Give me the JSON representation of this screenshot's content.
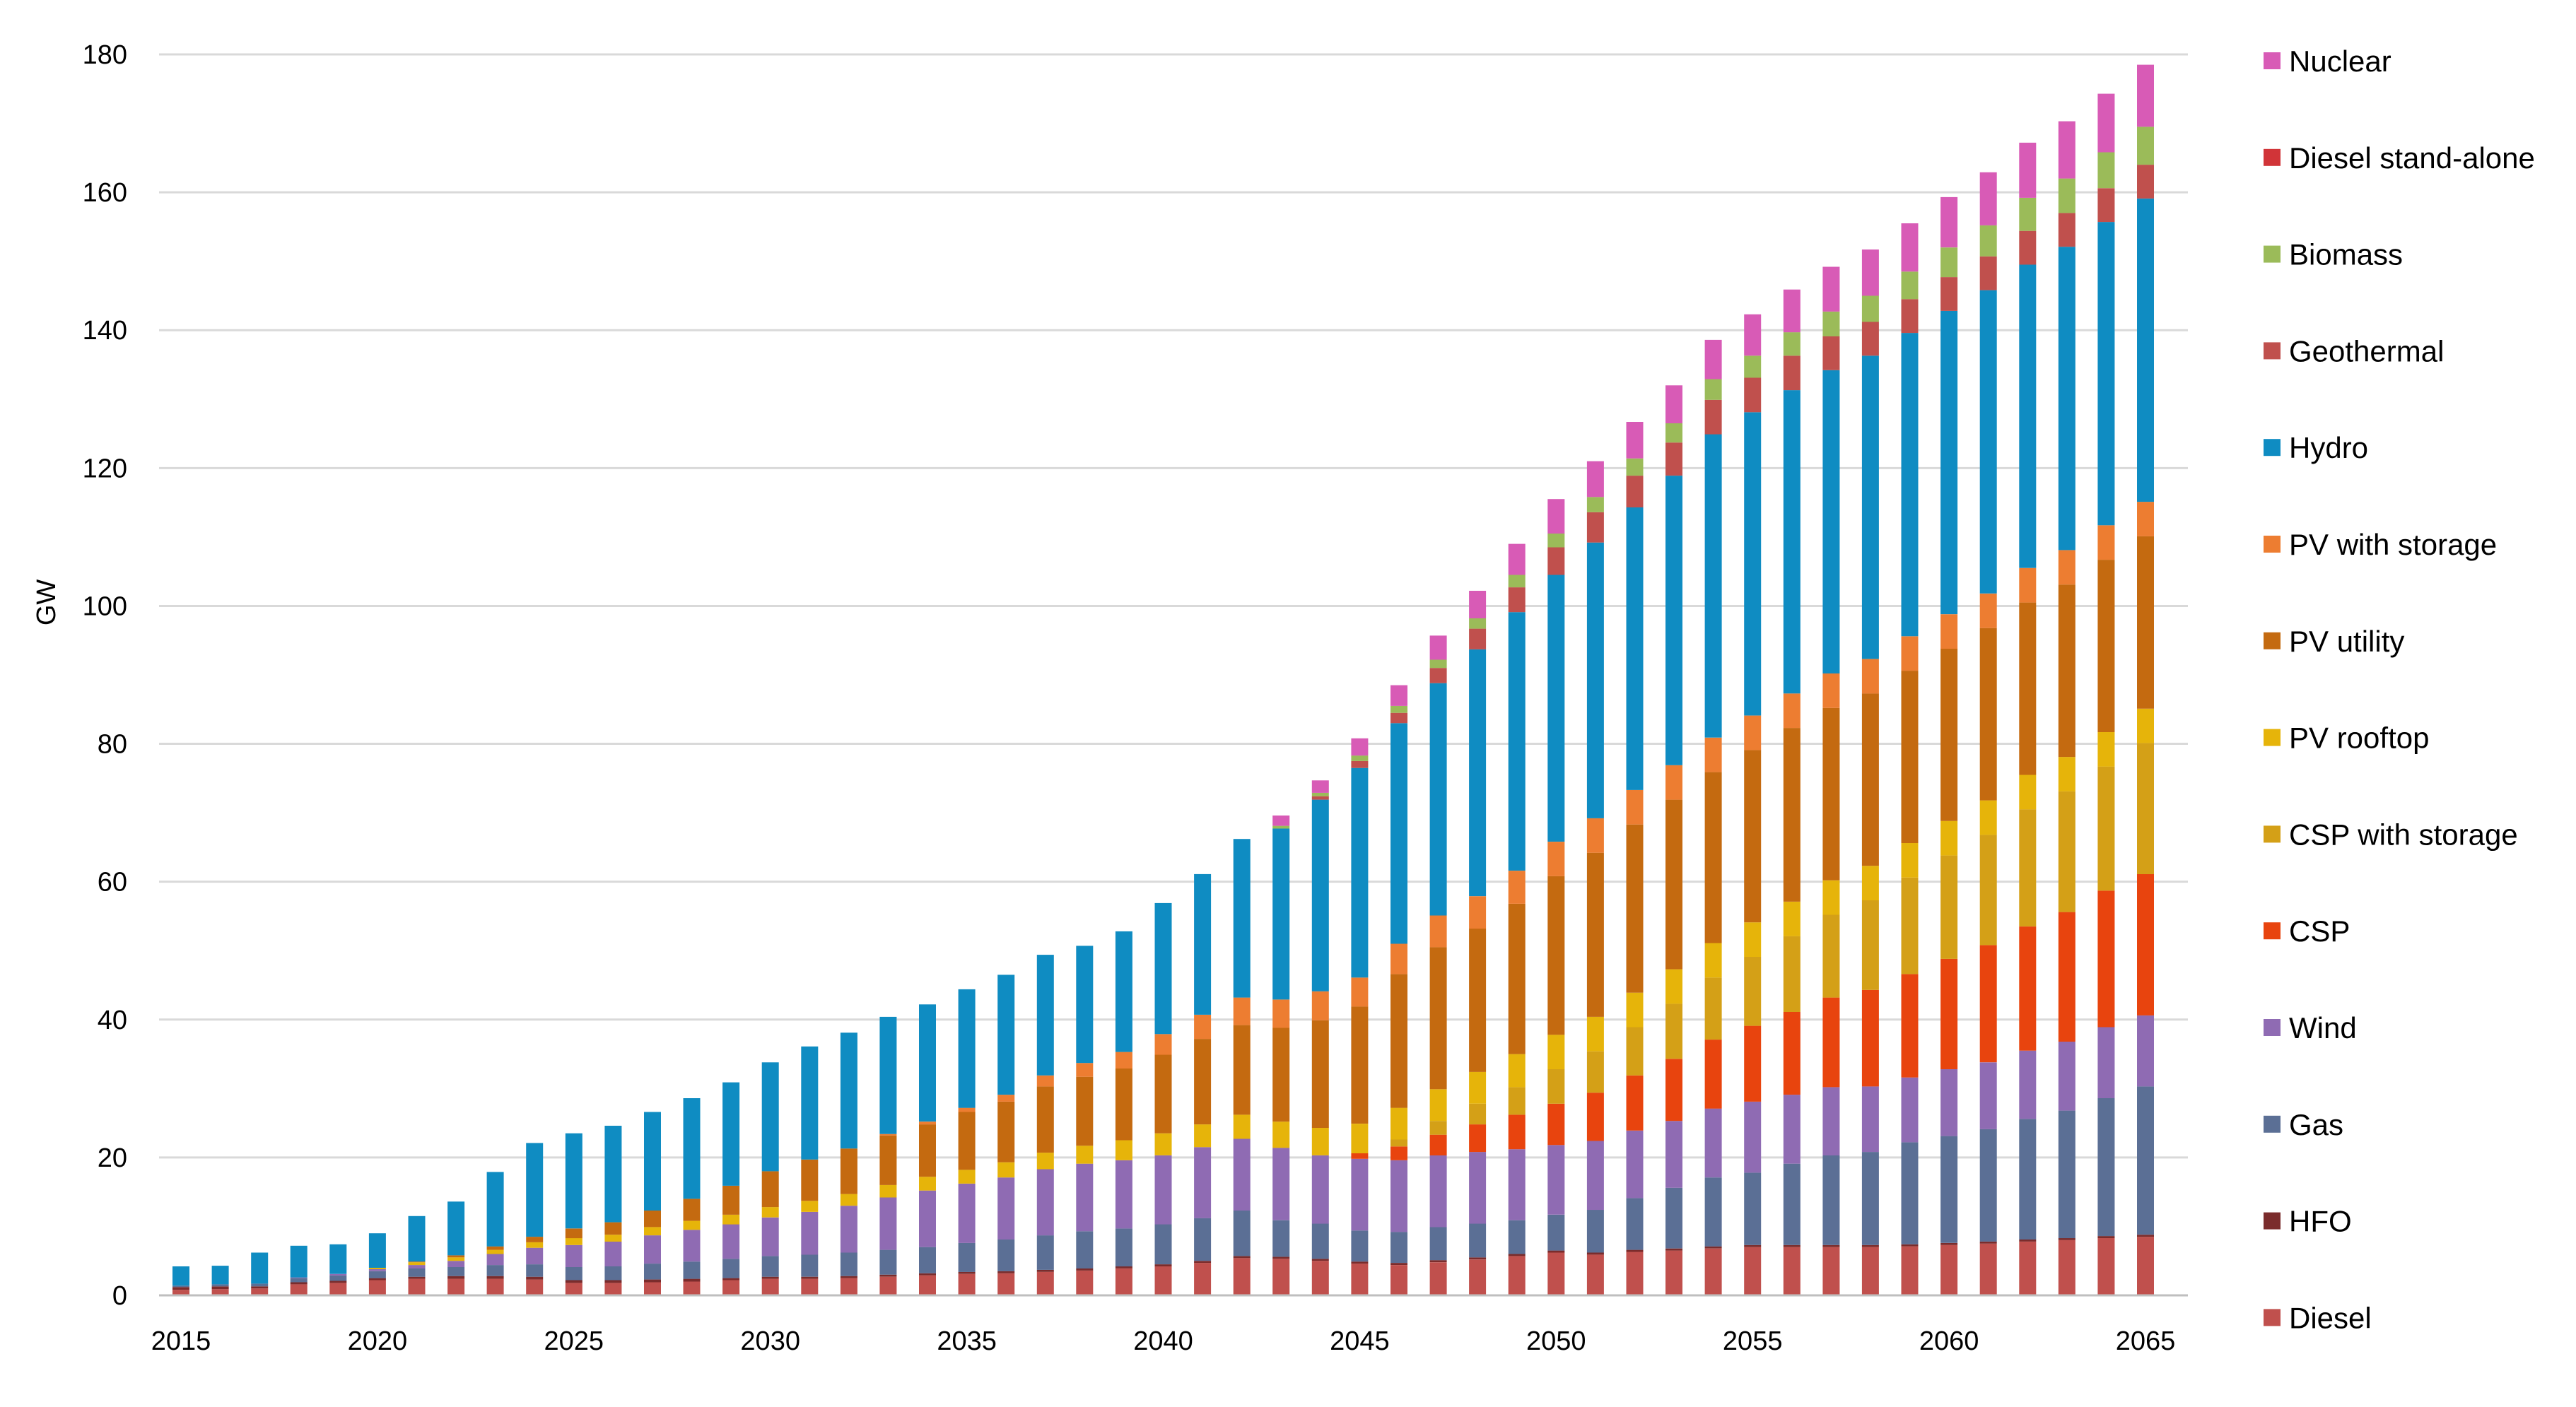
{
  "chart_data": {
    "type": "bar",
    "stacked": true,
    "title": "",
    "xlabel": "",
    "ylabel": "GW",
    "ylim": [
      0,
      180
    ],
    "ytick_step": 20,
    "xtick_labels": [
      "2015",
      "2020",
      "2025",
      "2030",
      "2035",
      "2040",
      "2045",
      "2050",
      "2055",
      "2060",
      "2065"
    ],
    "legend_position": "right",
    "x": [
      2015,
      2016,
      2017,
      2018,
      2019,
      2020,
      2021,
      2022,
      2023,
      2024,
      2025,
      2026,
      2027,
      2028,
      2029,
      2030,
      2031,
      2032,
      2033,
      2034,
      2035,
      2036,
      2037,
      2038,
      2039,
      2040,
      2041,
      2042,
      2043,
      2044,
      2045,
      2046,
      2047,
      2048,
      2049,
      2050,
      2051,
      2052,
      2053,
      2054,
      2055,
      2056,
      2057,
      2058,
      2059,
      2060,
      2061,
      2062,
      2063,
      2064,
      2065
    ],
    "series": [
      {
        "name": "Diesel",
        "color": "#c0504d",
        "values": [
          0.8,
          0.9,
          1.0,
          1.6,
          1.8,
          2.2,
          2.4,
          2.4,
          2.4,
          2.3,
          1.8,
          1.8,
          1.9,
          2.0,
          2.2,
          2.4,
          2.4,
          2.5,
          2.7,
          2.9,
          3.1,
          3.2,
          3.4,
          3.6,
          3.9,
          4.2,
          4.7,
          5.4,
          5.3,
          5.0,
          4.6,
          4.4,
          4.8,
          5.2,
          5.7,
          6.2,
          5.9,
          6.3,
          6.5,
          6.8,
          7.0,
          7.0,
          7.0,
          7.0,
          7.1,
          7.3,
          7.5,
          7.8,
          8.0,
          8.3,
          8.5
        ]
      },
      {
        "name": "HFO",
        "color": "#7b2c2c",
        "values": [
          0.4,
          0.4,
          0.3,
          0.3,
          0.3,
          0.3,
          0.3,
          0.4,
          0.4,
          0.4,
          0.4,
          0.4,
          0.4,
          0.4,
          0.3,
          0.3,
          0.3,
          0.3,
          0.3,
          0.3,
          0.3,
          0.3,
          0.3,
          0.3,
          0.3,
          0.3,
          0.3,
          0.3,
          0.3,
          0.3,
          0.3,
          0.3,
          0.3,
          0.3,
          0.3,
          0.3,
          0.3,
          0.3,
          0.3,
          0.3,
          0.3,
          0.3,
          0.3,
          0.3,
          0.3,
          0.3,
          0.3,
          0.3,
          0.3,
          0.3,
          0.3
        ]
      },
      {
        "name": "Gas",
        "color": "#5b6f95",
        "values": [
          0.2,
          0.3,
          0.4,
          0.6,
          0.8,
          1.0,
          1.2,
          1.3,
          1.6,
          1.8,
          1.9,
          2.0,
          2.3,
          2.5,
          2.8,
          3.0,
          3.2,
          3.4,
          3.6,
          3.8,
          4.2,
          4.6,
          5.0,
          5.4,
          5.5,
          5.8,
          6.2,
          6.6,
          5.3,
          5.1,
          4.5,
          4.5,
          4.8,
          4.9,
          4.9,
          5.2,
          6.2,
          7.5,
          8.8,
          10.0,
          10.5,
          11.8,
          13.0,
          13.5,
          14.8,
          15.5,
          16.3,
          17.5,
          18.5,
          20.0,
          21.5
        ]
      },
      {
        "name": "Wind",
        "color": "#8f6bb3",
        "values": [
          0.0,
          0.0,
          0.0,
          0.1,
          0.2,
          0.3,
          0.5,
          0.9,
          1.6,
          2.4,
          3.2,
          3.6,
          4.1,
          4.6,
          5.0,
          5.6,
          6.2,
          6.8,
          7.6,
          8.2,
          8.6,
          9.0,
          9.6,
          9.8,
          9.9,
          10.0,
          10.3,
          10.4,
          10.5,
          9.9,
          10.4,
          10.4,
          10.4,
          10.4,
          10.3,
          10.1,
          10.0,
          9.8,
          9.7,
          10.0,
          10.3,
          10.0,
          9.9,
          9.5,
          9.4,
          9.7,
          9.7,
          9.9,
          10.0,
          10.3,
          10.3
        ]
      },
      {
        "name": "CSP",
        "color": "#e8440e",
        "values": [
          0,
          0,
          0,
          0,
          0,
          0,
          0,
          0,
          0,
          0,
          0,
          0,
          0,
          0,
          0,
          0,
          0,
          0,
          0,
          0,
          0,
          0,
          0,
          0,
          0,
          0,
          0,
          0,
          0,
          0,
          0.8,
          2.0,
          3.0,
          4.0,
          5.0,
          6.0,
          7.0,
          8.0,
          9.0,
          10.0,
          11.0,
          12.0,
          13.0,
          14.0,
          15.0,
          16.0,
          17.0,
          18.0,
          18.8,
          19.8,
          20.5
        ]
      },
      {
        "name": "CSP with storage",
        "color": "#d4a017",
        "values": [
          0,
          0,
          0,
          0,
          0,
          0,
          0,
          0,
          0,
          0,
          0,
          0,
          0,
          0,
          0,
          0,
          0,
          0,
          0,
          0,
          0,
          0,
          0,
          0,
          0,
          0,
          0,
          0,
          0,
          0,
          0,
          1.0,
          2.0,
          3.0,
          4.0,
          5.0,
          6.0,
          7.0,
          8.0,
          9.0,
          10.0,
          11.0,
          12.0,
          13.0,
          14.0,
          15.0,
          16.0,
          17.0,
          17.5,
          18.0,
          19.0
        ]
      },
      {
        "name": "PV rooftop",
        "color": "#e6b40a",
        "values": [
          0,
          0,
          0,
          0,
          0,
          0.2,
          0.4,
          0.5,
          0.6,
          0.8,
          1.0,
          1.0,
          1.2,
          1.3,
          1.4,
          1.5,
          1.6,
          1.7,
          1.8,
          2.0,
          2.0,
          2.2,
          2.4,
          2.6,
          2.9,
          3.2,
          3.3,
          3.5,
          3.8,
          4.0,
          4.3,
          4.6,
          4.6,
          4.6,
          4.8,
          5.0,
          5.0,
          5.0,
          5.0,
          5.0,
          5.0,
          5.0,
          5.0,
          5.0,
          5.0,
          5.0,
          5.0,
          5.0,
          5.0,
          5.0,
          5.0
        ]
      },
      {
        "name": "PV utility",
        "color": "#c46a10",
        "values": [
          0,
          0,
          0,
          0,
          0,
          0,
          0.1,
          0.3,
          0.5,
          0.8,
          1.4,
          1.8,
          2.4,
          3.2,
          4.2,
          5.2,
          6.0,
          6.6,
          7.2,
          7.6,
          8.4,
          8.8,
          9.6,
          10.0,
          10.4,
          11.4,
          12.4,
          13.0,
          13.6,
          15.6,
          17.0,
          19.4,
          20.6,
          20.8,
          21.8,
          23.0,
          23.8,
          24.4,
          24.6,
          24.8,
          25.0,
          25.2,
          25.0,
          25.0,
          25.0,
          25.0,
          25.0,
          25.0,
          25.0,
          25.0,
          25.0
        ]
      },
      {
        "name": "PV with storage",
        "color": "#ed7d31",
        "values": [
          0,
          0,
          0,
          0,
          0,
          0,
          0,
          0,
          0,
          0,
          0,
          0,
          0,
          0,
          0,
          0,
          0,
          0,
          0.2,
          0.4,
          0.6,
          1.0,
          1.6,
          2.0,
          2.4,
          3.0,
          3.5,
          4.0,
          4.1,
          4.2,
          4.2,
          4.4,
          4.6,
          4.7,
          4.8,
          5.0,
          5.0,
          5.0,
          5.0,
          5.0,
          5.0,
          5.0,
          5.0,
          5.0,
          5.0,
          5.0,
          5.0,
          5.0,
          5.0,
          5.0,
          5.0
        ]
      },
      {
        "name": "Hydro",
        "color": "#0f8cc2",
        "values": [
          2.8,
          2.7,
          4.5,
          4.6,
          4.3,
          5.0,
          6.6,
          7.8,
          10.8,
          13.6,
          13.8,
          14.0,
          14.3,
          14.6,
          15.0,
          15.8,
          16.4,
          16.8,
          17.0,
          17.0,
          17.2,
          17.4,
          17.5,
          17.0,
          17.5,
          19.0,
          20.4,
          23.0,
          24.8,
          27.8,
          30.4,
          32.0,
          33.7,
          35.8,
          37.5,
          38.7,
          40.0,
          41.0,
          42.0,
          44.0,
          44.0,
          44.0,
          44.0,
          44.0,
          44.0,
          44.0,
          44.0,
          44.0,
          44.0,
          44.0,
          44.0
        ]
      },
      {
        "name": "Geothermal",
        "color": "#c0504d",
        "values": [
          0,
          0,
          0,
          0,
          0,
          0,
          0,
          0,
          0,
          0,
          0,
          0,
          0,
          0,
          0,
          0,
          0,
          0,
          0,
          0,
          0,
          0,
          0,
          0,
          0,
          0,
          0,
          0,
          0,
          0.5,
          1.0,
          1.5,
          2.2,
          3.0,
          3.6,
          4.0,
          4.4,
          4.6,
          4.8,
          5.0,
          5.0,
          5.0,
          4.9,
          4.9,
          4.9,
          4.9,
          4.9,
          4.9,
          4.9,
          4.9,
          4.9
        ]
      },
      {
        "name": "Biomass",
        "color": "#9bbb59",
        "values": [
          0,
          0,
          0,
          0,
          0,
          0,
          0,
          0,
          0,
          0,
          0,
          0,
          0,
          0,
          0,
          0,
          0,
          0,
          0,
          0,
          0,
          0,
          0,
          0,
          0,
          0,
          0,
          0,
          0.4,
          0.5,
          0.8,
          1.0,
          1.2,
          1.5,
          1.8,
          2.0,
          2.2,
          2.5,
          2.8,
          3.0,
          3.2,
          3.4,
          3.6,
          3.8,
          4.0,
          4.3,
          4.5,
          4.8,
          5.0,
          5.2,
          5.5
        ]
      },
      {
        "name": "Diesel stand-alone",
        "color": "#d13438",
        "values": [
          0,
          0,
          0,
          0,
          0,
          0,
          0,
          0,
          0,
          0,
          0,
          0,
          0,
          0,
          0,
          0,
          0,
          0,
          0,
          0,
          0,
          0,
          0,
          0,
          0,
          0,
          0,
          0,
          0,
          0,
          0,
          0,
          0,
          0,
          0,
          0,
          0,
          0,
          0,
          0,
          0,
          0,
          0,
          0,
          0,
          0,
          0,
          0,
          0,
          0,
          0
        ]
      },
      {
        "name": "Nuclear",
        "color": "#d85bb6",
        "values": [
          0,
          0,
          0,
          0,
          0,
          0,
          0,
          0,
          0,
          0,
          0,
          0,
          0,
          0,
          0,
          0,
          0,
          0,
          0,
          0,
          0,
          0,
          0,
          0,
          0,
          0,
          0,
          0,
          1.5,
          1.8,
          2.5,
          3.0,
          3.5,
          4.0,
          4.5,
          5.0,
          5.2,
          5.3,
          5.5,
          5.7,
          6.0,
          6.2,
          6.5,
          6.7,
          7.0,
          7.3,
          7.7,
          8.0,
          8.3,
          8.5,
          9.0
        ]
      }
    ],
    "legend_order": [
      "Nuclear",
      "Diesel stand-alone",
      "Biomass",
      "Geothermal",
      "Hydro",
      "PV with storage",
      "PV utility",
      "PV rooftop",
      "CSP with storage",
      "CSP",
      "Wind",
      "Gas",
      "HFO",
      "Diesel"
    ]
  }
}
